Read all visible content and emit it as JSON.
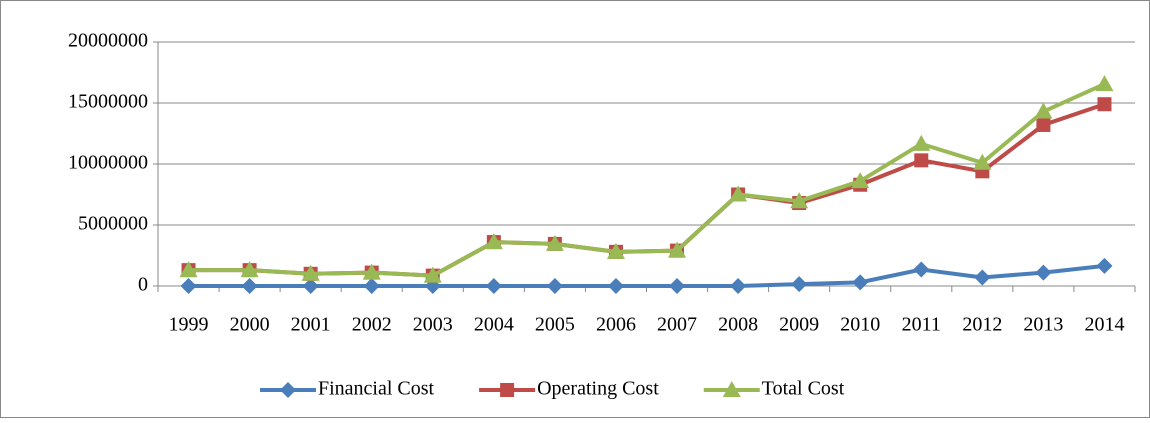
{
  "chart_data": {
    "type": "line",
    "categories": [
      "1999",
      "2000",
      "2001",
      "2002",
      "2003",
      "2004",
      "2005",
      "2006",
      "2007",
      "2008",
      "2009",
      "2010",
      "2011",
      "2012",
      "2013",
      "2014"
    ],
    "series": [
      {
        "name": "Financial Cost",
        "color": "#4a7ebb",
        "marker": "diamond",
        "values": [
          0,
          0,
          0,
          0,
          0,
          0,
          0,
          0,
          0,
          0,
          150000,
          300000,
          1350000,
          700000,
          1100000,
          1650000
        ]
      },
      {
        "name": "Operating Cost",
        "color": "#be4b48",
        "marker": "square",
        "values": [
          1300000,
          1300000,
          1000000,
          1100000,
          850000,
          3600000,
          3450000,
          2800000,
          2900000,
          7500000,
          6800000,
          8300000,
          10300000,
          9400000,
          13200000,
          14900000
        ]
      },
      {
        "name": "Total Cost",
        "color": "#98b954",
        "marker": "triangle",
        "values": [
          1300000,
          1300000,
          1000000,
          1100000,
          850000,
          3600000,
          3450000,
          2800000,
          2900000,
          7500000,
          6950000,
          8600000,
          11650000,
          10100000,
          14300000,
          16550000
        ]
      }
    ],
    "ylim": [
      0,
      20000000
    ],
    "yticks": [
      0,
      5000000,
      10000000,
      15000000,
      20000000
    ],
    "grid": true,
    "legend": "bottom"
  }
}
